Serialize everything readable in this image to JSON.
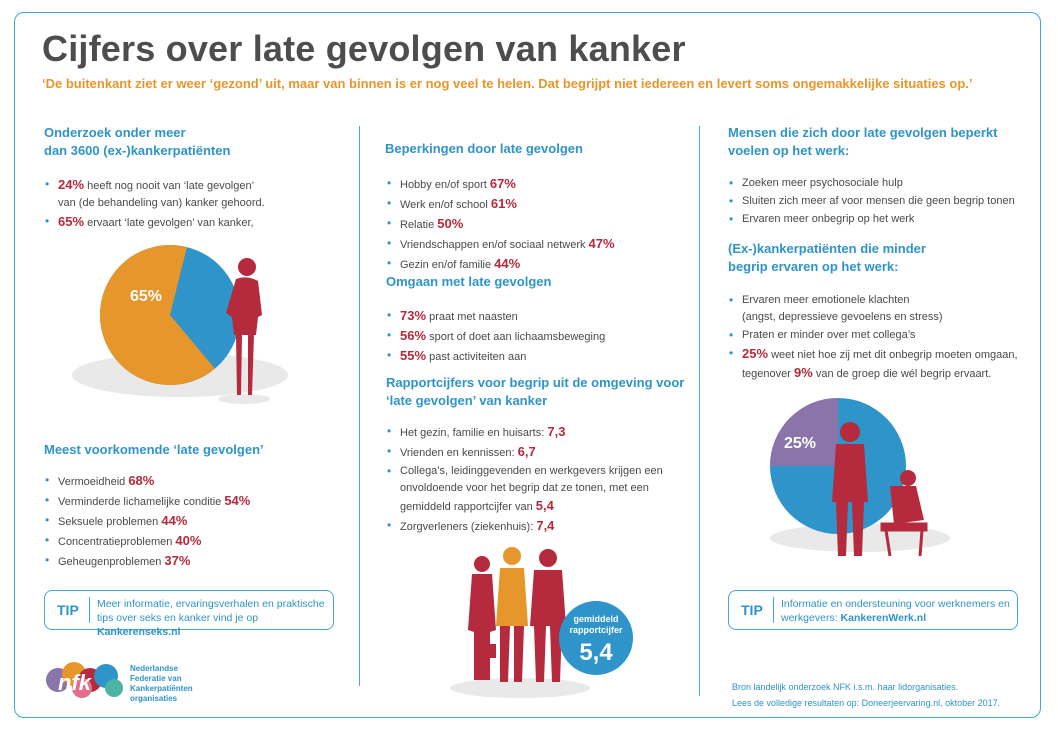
{
  "title": "Cijfers over late gevolgen van kanker",
  "subtitle": "‘De buitenkant ziet er weer ‘gezond’ uit, maar van binnen is er nog veel te helen. Dat begrijpt niet iedereen en levert soms ongemakkelijke situaties op.’",
  "col1": {
    "heading_line1": "Onderzoek onder meer",
    "heading_line2": "dan 3600 (ex-)kankerpatiënten",
    "stats": [
      {
        "pct": "24%",
        "text1": " heeft nog nooit van ‘late gevolgen’",
        "text2": "van (de behandeling van) kanker gehoord."
      },
      {
        "pct": "65%",
        "text1": " ervaart ‘late gevolgen’ van kanker,"
      }
    ],
    "pie_label": "65%",
    "pie_value": 65,
    "effects_heading": "Meest voorkomende ‘late gevolgen’",
    "effects": [
      {
        "label": "Vermoeidheid ",
        "pct": "68%"
      },
      {
        "label": "Verminderde lichamelijke conditie ",
        "pct": "54%"
      },
      {
        "label": "Seksuele problemen ",
        "pct": "44%"
      },
      {
        "label": "Concentratieproblemen ",
        "pct": "40%"
      },
      {
        "label": "Geheugenproblemen ",
        "pct": "37%"
      }
    ],
    "tip": {
      "label": "TIP",
      "text1": "Meer informatie, ervaringsverhalen en praktische",
      "text2": "tips over seks en kanker vind je op ",
      "link": "Kankerenseks.nl"
    },
    "logo": {
      "mark": "nfk",
      "line1": "Nederlandse",
      "line2": "Federatie van",
      "line3": "Kankerpatiënten",
      "line4": "organisaties"
    }
  },
  "col2": {
    "limits_heading": "Beperkingen door late gevolgen",
    "limits": [
      {
        "label": "Hobby en/of sport ",
        "pct": "67%"
      },
      {
        "label": "Werk en/of school ",
        "pct": "61%"
      },
      {
        "label": "Relatie ",
        "pct": "50%"
      },
      {
        "label": "Vriendschappen en/of sociaal netwerk ",
        "pct": "47%"
      },
      {
        "label": "Gezin en/of familie ",
        "pct": "44%"
      }
    ],
    "coping_heading": "Omgaan met late gevolgen",
    "coping": [
      {
        "pct": "73%",
        "label": " praat met naasten"
      },
      {
        "pct": "56%",
        "label": " sport of doet aan lichaamsbeweging"
      },
      {
        "pct": "55%",
        "label": " past activiteiten aan"
      }
    ],
    "grades_heading_line1": "Rapportcijfers voor begrip uit de omgeving voor",
    "grades_heading_line2": "‘late gevolgen’ van kanker",
    "grades": [
      {
        "label": "Het gezin, familie en huisarts: ",
        "value": "7,3"
      },
      {
        "label": "Vrienden en kennissen: ",
        "value": "6,7"
      },
      {
        "label": "Collega’s, leidinggevenden en werkgevers krijgen een",
        "label2": "onvoldoende voor het begrip dat ze tonen, met een",
        "label3": "gemiddeld rapportcijfer van ",
        "value": "5,4"
      },
      {
        "label": "Zorgverleners (ziekenhuis): ",
        "value": "7,4"
      }
    ],
    "badge_line1": "gemiddeld",
    "badge_line2": "rapportcijfer",
    "badge_value": "5,4"
  },
  "col3": {
    "work_heading_line1": "Mensen die zich door late gevolgen beperkt",
    "work_heading_line2": "voelen op het werk:",
    "work": [
      "Zoeken meer psychosociale hulp",
      "Sluiten zich meer af voor mensen die geen begrip tonen",
      "Ervaren meer onbegrip op het werk"
    ],
    "less_heading_line1": "(Ex-)kankerpatiënten die minder",
    "less_heading_line2": "begrip ervaren op het werk:",
    "less": [
      {
        "text1": "Ervaren meer emotionele klachten",
        "text2": "(angst, depressieve gevoelens en stress)"
      },
      {
        "text1": "Praten er minder over met collega’s"
      },
      {
        "pct": "25%",
        "text1": " weet niet hoe zij met dit onbegrip moeten omgaan,",
        "text2a": "tegenover ",
        "pct2": "9%",
        "text2b": " van de groep die wél begrip ervaart."
      }
    ],
    "pie_label": "25%",
    "pie_value": 25,
    "tip": {
      "label": "TIP",
      "text1": "Informatie en ondersteuning voor werknemers en",
      "text2": "werkgevers: ",
      "link": "KankerenWerk.nl"
    },
    "source1": "Bron landelijk onderzoek NFK i.s.m. haar lidorganisaties.",
    "source2": "Lees de volledige resultaten op: Doneerjeervaring.nl, oktober 2017."
  },
  "colors": {
    "blue": "#2f94c9",
    "orange": "#e7962b",
    "red": "#b52a3d",
    "purple": "#8b74aa",
    "grey": "#4d4d4d"
  }
}
